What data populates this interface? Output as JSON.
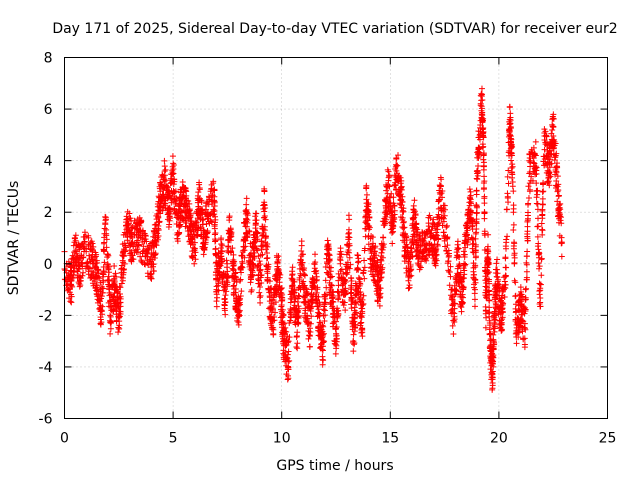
{
  "chart_data": {
    "type": "scatter",
    "title": "Day 171 of 2025, Sidereal Day-to-day VTEC variation (SDTVAR) for receiver eur2",
    "xlabel": "GPS time / hours",
    "ylabel": "SDTVAR / TECUs",
    "xlim": [
      0,
      25
    ],
    "ylim": [
      -6,
      8
    ],
    "xticks": [
      "0",
      "5",
      "10",
      "15",
      "20",
      "25"
    ],
    "yticks": [
      "-6",
      "-4",
      "-2",
      "0",
      "2",
      "4",
      "6",
      "8"
    ],
    "grid": true,
    "marker": "plus",
    "color": "#ff0000",
    "series": [
      {
        "name": "SDTVAR",
        "points": [
          [
            0.0,
            -0.2
          ],
          [
            0.3,
            -0.8
          ],
          [
            0.5,
            0.5
          ],
          [
            0.7,
            -0.1
          ],
          [
            1.0,
            0.6
          ],
          [
            1.3,
            0.0
          ],
          [
            1.5,
            -0.5
          ],
          [
            1.7,
            -1.8
          ],
          [
            1.9,
            1.8
          ],
          [
            2.1,
            -2.0
          ],
          [
            2.3,
            -0.8
          ],
          [
            2.5,
            -2.1
          ],
          [
            2.7,
            0.3
          ],
          [
            2.9,
            1.5
          ],
          [
            3.1,
            0.8
          ],
          [
            3.4,
            1.2
          ],
          [
            3.7,
            0.5
          ],
          [
            4.0,
            0.0
          ],
          [
            4.2,
            0.9
          ],
          [
            4.4,
            2.4
          ],
          [
            4.6,
            3.2
          ],
          [
            4.8,
            2.0
          ],
          [
            5.0,
            3.5
          ],
          [
            5.2,
            1.2
          ],
          [
            5.4,
            2.5
          ],
          [
            5.6,
            2.2
          ],
          [
            5.8,
            1.3
          ],
          [
            6.0,
            0.6
          ],
          [
            6.2,
            2.5
          ],
          [
            6.4,
            1.0
          ],
          [
            6.6,
            2.0
          ],
          [
            6.9,
            2.6
          ],
          [
            7.0,
            -1.0
          ],
          [
            7.2,
            0.5
          ],
          [
            7.4,
            -1.5
          ],
          [
            7.6,
            1.2
          ],
          [
            7.8,
            -0.5
          ],
          [
            8.0,
            -2.0
          ],
          [
            8.2,
            0.3
          ],
          [
            8.4,
            2.0
          ],
          [
            8.6,
            -0.5
          ],
          [
            8.8,
            1.5
          ],
          [
            9.0,
            -0.9
          ],
          [
            9.2,
            2.3
          ],
          [
            9.4,
            -1.0
          ],
          [
            9.6,
            -2.2
          ],
          [
            9.8,
            0.0
          ],
          [
            10.0,
            -1.6
          ],
          [
            10.1,
            -3.0
          ],
          [
            10.3,
            -3.8
          ],
          [
            10.5,
            -0.4
          ],
          [
            10.7,
            -2.8
          ],
          [
            10.9,
            0.3
          ],
          [
            11.1,
            -1.5
          ],
          [
            11.3,
            -2.5
          ],
          [
            11.5,
            0.0
          ],
          [
            11.7,
            -2.0
          ],
          [
            11.9,
            -3.2
          ],
          [
            12.1,
            0.4
          ],
          [
            12.3,
            -1.2
          ],
          [
            12.5,
            -2.8
          ],
          [
            12.7,
            0.0
          ],
          [
            12.9,
            -1.5
          ],
          [
            13.1,
            1.2
          ],
          [
            13.3,
            -3.0
          ],
          [
            13.5,
            -0.2
          ],
          [
            13.7,
            -2.5
          ],
          [
            13.9,
            2.5
          ],
          [
            14.1,
            0.5
          ],
          [
            14.3,
            0.0
          ],
          [
            14.5,
            -1.2
          ],
          [
            14.7,
            1.5
          ],
          [
            14.9,
            3.0
          ],
          [
            15.1,
            1.5
          ],
          [
            15.3,
            3.8
          ],
          [
            15.5,
            2.5
          ],
          [
            15.7,
            0.5
          ],
          [
            15.9,
            -0.5
          ],
          [
            16.1,
            1.8
          ],
          [
            16.3,
            0.2
          ],
          [
            16.6,
            0.8
          ],
          [
            16.9,
            1.3
          ],
          [
            17.1,
            0.5
          ],
          [
            17.3,
            2.7
          ],
          [
            17.6,
            1.0
          ],
          [
            17.9,
            -2.2
          ],
          [
            18.1,
            0.3
          ],
          [
            18.3,
            -1.5
          ],
          [
            18.5,
            1.2
          ],
          [
            18.7,
            2.4
          ],
          [
            18.9,
            -1.0
          ],
          [
            19.0,
            3.5
          ],
          [
            19.2,
            6.5
          ],
          [
            19.3,
            4.2
          ],
          [
            19.4,
            -1.8
          ],
          [
            19.5,
            0.5
          ],
          [
            19.6,
            -3.2
          ],
          [
            19.7,
            -4.3
          ],
          [
            19.8,
            -2.0
          ],
          [
            19.9,
            -0.5
          ],
          [
            20.1,
            -2.2
          ],
          [
            20.3,
            -0.5
          ],
          [
            20.5,
            5.6
          ],
          [
            20.6,
            4.2
          ],
          [
            20.8,
            -2.6
          ],
          [
            21.0,
            -1.6
          ],
          [
            21.2,
            -2.5
          ],
          [
            21.4,
            3.5
          ],
          [
            21.7,
            4.2
          ],
          [
            21.9,
            -1.5
          ],
          [
            22.1,
            4.8
          ],
          [
            22.3,
            3.5
          ],
          [
            22.5,
            5.3
          ],
          [
            22.7,
            2.8
          ],
          [
            22.9,
            0.8
          ]
        ]
      }
    ]
  }
}
